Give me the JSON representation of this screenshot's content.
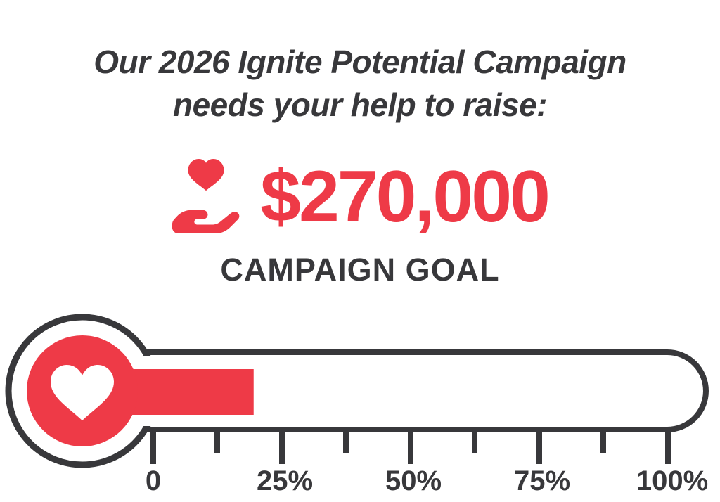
{
  "page": {
    "background": "#ffffff"
  },
  "colors": {
    "accent_red": "#ee3a47",
    "ink_dark": "#38383b"
  },
  "header": {
    "title_line1": "Our 2026 Ignite Potential Campaign",
    "title_line2": "needs your help to raise:",
    "amount": "$270,000",
    "goal_label": "CAMPAIGN GOAL"
  },
  "icons": {
    "amount_icon": "heart-in-hand-icon",
    "bulb_icon": "heart-icon"
  },
  "chart_data": {
    "type": "progress-thermometer",
    "title": "CAMPAIGN GOAL",
    "goal_amount": "$270,000",
    "progress_percent": 19.5,
    "axis_ticks": [
      "0",
      "25%",
      "50%",
      "75%",
      "100%"
    ],
    "axis_range": [
      0,
      100
    ],
    "minor_ticks_between_major": 1,
    "fill_color": "#ee3a47",
    "outline_color": "#38383b",
    "grid": "off",
    "legend": "none"
  }
}
